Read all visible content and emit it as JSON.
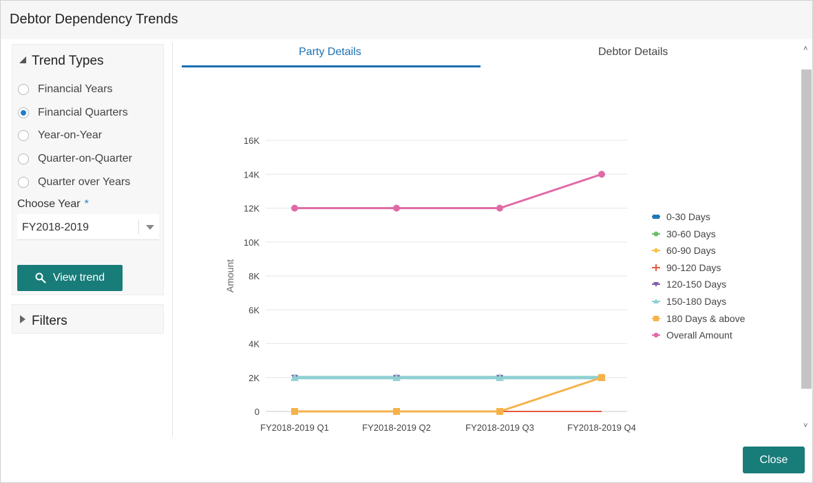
{
  "dialog": {
    "title": "Debtor Dependency Trends",
    "close_label": "Close"
  },
  "sidebar": {
    "trend_types_title": "Trend Types",
    "options": [
      {
        "label": "Financial Years",
        "checked": false
      },
      {
        "label": "Financial Quarters",
        "checked": true
      },
      {
        "label": "Year-on-Year",
        "checked": false
      },
      {
        "label": "Quarter-on-Quarter",
        "checked": false
      },
      {
        "label": "Quarter over Years",
        "checked": false
      }
    ],
    "choose_year_label": "Choose Year",
    "required_marker": "*",
    "year_value": "FY2018-2019",
    "view_trend_label": "View trend",
    "filters_title": "Filters"
  },
  "tabs": [
    {
      "label": "Party Details",
      "active": true
    },
    {
      "label": "Debtor Details",
      "active": false
    }
  ],
  "chart_data": {
    "type": "line",
    "categories": [
      "FY2018-2019 Q1",
      "FY2018-2019 Q2",
      "FY2018-2019 Q3",
      "FY2018-2019 Q4"
    ],
    "ylabel": "Amount",
    "ylim": [
      0,
      16000
    ],
    "yticks": [
      0,
      2000,
      4000,
      6000,
      8000,
      10000,
      12000,
      14000,
      16000
    ],
    "ytick_labels": [
      "0",
      "2K",
      "4K",
      "6K",
      "8K",
      "10K",
      "12K",
      "14K",
      "16K"
    ],
    "grid": true,
    "legend_position": "right",
    "series": [
      {
        "name": "0-30 Days",
        "color": "#1f77b4",
        "marker": "square-bar",
        "values": [
          0,
          0,
          0,
          0
        ]
      },
      {
        "name": "30-60 Days",
        "color": "#6abf69",
        "marker": "circle",
        "values": [
          0,
          0,
          0,
          0
        ]
      },
      {
        "name": "60-90 Days",
        "color": "#f5c242",
        "marker": "diamond",
        "values": [
          0,
          0,
          0,
          2000
        ]
      },
      {
        "name": "90-120 Days",
        "color": "#e8573e",
        "marker": "cross",
        "values": [
          0,
          0,
          0,
          0
        ]
      },
      {
        "name": "120-150 Days",
        "color": "#7b5ea7",
        "marker": "triangle-down",
        "values": [
          2000,
          2000,
          2000,
          2000
        ]
      },
      {
        "name": "150-180 Days",
        "color": "#8fd0d3",
        "marker": "triangle",
        "values": [
          2000,
          2000,
          2000,
          2000
        ]
      },
      {
        "name": "180 Days & above",
        "color": "#f6b24a",
        "marker": "square",
        "values": [
          0,
          0,
          0,
          2000
        ]
      },
      {
        "name": "Overall Amount",
        "color": "#e06aa6",
        "marker": "circle",
        "values": [
          12000,
          12000,
          12000,
          14000
        ]
      }
    ]
  }
}
